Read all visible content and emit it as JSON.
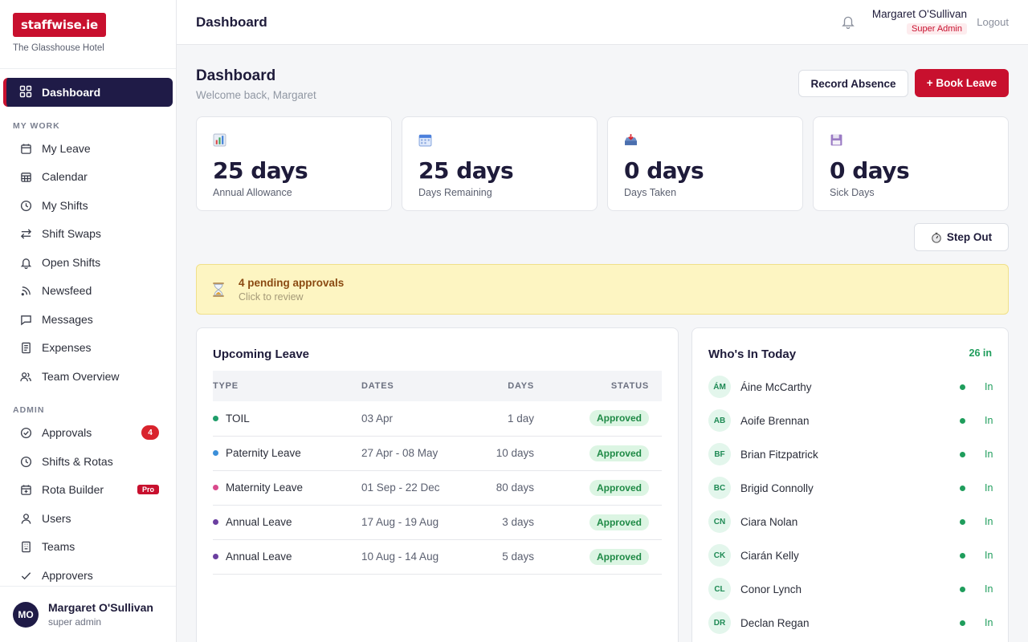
{
  "brand": {
    "logo": "staffwise.ie",
    "hotel": "The Glasshouse Hotel"
  },
  "sidebar": {
    "active": {
      "label": "Dashboard",
      "icon": "grid-icon"
    },
    "sections": {
      "my_work": "MY WORK",
      "admin": "ADMIN"
    },
    "my_work": [
      {
        "label": "My Leave",
        "icon": "calendar-icon"
      },
      {
        "label": "Calendar",
        "icon": "calendar-grid-icon"
      },
      {
        "label": "My Shifts",
        "icon": "clock-icon"
      },
      {
        "label": "Shift Swaps",
        "icon": "swap-icon"
      },
      {
        "label": "Open Shifts",
        "icon": "bell-icon"
      },
      {
        "label": "Newsfeed",
        "icon": "rss-icon"
      },
      {
        "label": "Messages",
        "icon": "message-icon"
      },
      {
        "label": "Expenses",
        "icon": "receipt-icon"
      },
      {
        "label": "Team Overview",
        "icon": "users-icon"
      }
    ],
    "admin": [
      {
        "label": "Approvals",
        "icon": "check-circle-icon",
        "badge": "4"
      },
      {
        "label": "Shifts & Rotas",
        "icon": "clock-icon"
      },
      {
        "label": "Rota Builder",
        "icon": "calendar-edit-icon",
        "badge_pro": "Pro"
      },
      {
        "label": "Users",
        "icon": "user-icon"
      },
      {
        "label": "Teams",
        "icon": "building-icon"
      },
      {
        "label": "Approvers",
        "icon": "check-icon"
      }
    ],
    "footer": {
      "initials": "MO",
      "name": "Margaret O'Sullivan",
      "role": "super admin"
    }
  },
  "topbar": {
    "title": "Dashboard",
    "user_name": "Margaret O'Sullivan",
    "user_role": "Super Admin",
    "logout": "Logout"
  },
  "main": {
    "title": "Dashboard",
    "subtitle": "Welcome back, Margaret",
    "record_absence": "Record Absence",
    "book_leave": "+ Book Leave",
    "step_out": "Step Out",
    "stats": [
      {
        "value": "25 days",
        "label": "Annual Allowance",
        "icon": "bar-chart-icon"
      },
      {
        "value": "25 days",
        "label": "Days Remaining",
        "icon": "calendar-icon"
      },
      {
        "value": "0 days",
        "label": "Days Taken",
        "icon": "inbox-tray-icon"
      },
      {
        "value": "0 days",
        "label": "Sick Days",
        "icon": "floppy-icon"
      }
    ],
    "pending": {
      "title": "4 pending approvals",
      "subtitle": "Click to review"
    }
  },
  "upcoming": {
    "title": "Upcoming Leave",
    "headers": {
      "type": "TYPE",
      "dates": "DATES",
      "days": "DAYS",
      "status": "STATUS"
    },
    "rows": [
      {
        "type": "TOIL",
        "dates": "03 Apr",
        "days": "1 day",
        "status": "Approved",
        "color": "#1f9d6a"
      },
      {
        "type": "Paternity Leave",
        "dates": "27 Apr - 08 May",
        "days": "10 days",
        "status": "Approved",
        "color": "#3b8fd9"
      },
      {
        "type": "Maternity Leave",
        "dates": "01 Sep - 22 Dec",
        "days": "80 days",
        "status": "Approved",
        "color": "#d94a8c"
      },
      {
        "type": "Annual Leave",
        "dates": "17 Aug - 19 Aug",
        "days": "3 days",
        "status": "Approved",
        "color": "#6b3fa0"
      },
      {
        "type": "Annual Leave",
        "dates": "10 Aug - 14 Aug",
        "days": "5 days",
        "status": "Approved",
        "color": "#6b3fa0"
      }
    ]
  },
  "whos_in": {
    "title": "Who's In Today",
    "count": "26 in",
    "people": [
      {
        "initials": "ÁM",
        "name": "Áine McCarthy",
        "status": "In"
      },
      {
        "initials": "AB",
        "name": "Aoife Brennan",
        "status": "In"
      },
      {
        "initials": "BF",
        "name": "Brian Fitzpatrick",
        "status": "In"
      },
      {
        "initials": "BC",
        "name": "Brigid Connolly",
        "status": "In"
      },
      {
        "initials": "CN",
        "name": "Ciara Nolan",
        "status": "In"
      },
      {
        "initials": "CK",
        "name": "Ciarán Kelly",
        "status": "In"
      },
      {
        "initials": "CL",
        "name": "Conor Lynch",
        "status": "In"
      },
      {
        "initials": "DR",
        "name": "Declan Regan",
        "status": "In"
      }
    ]
  }
}
